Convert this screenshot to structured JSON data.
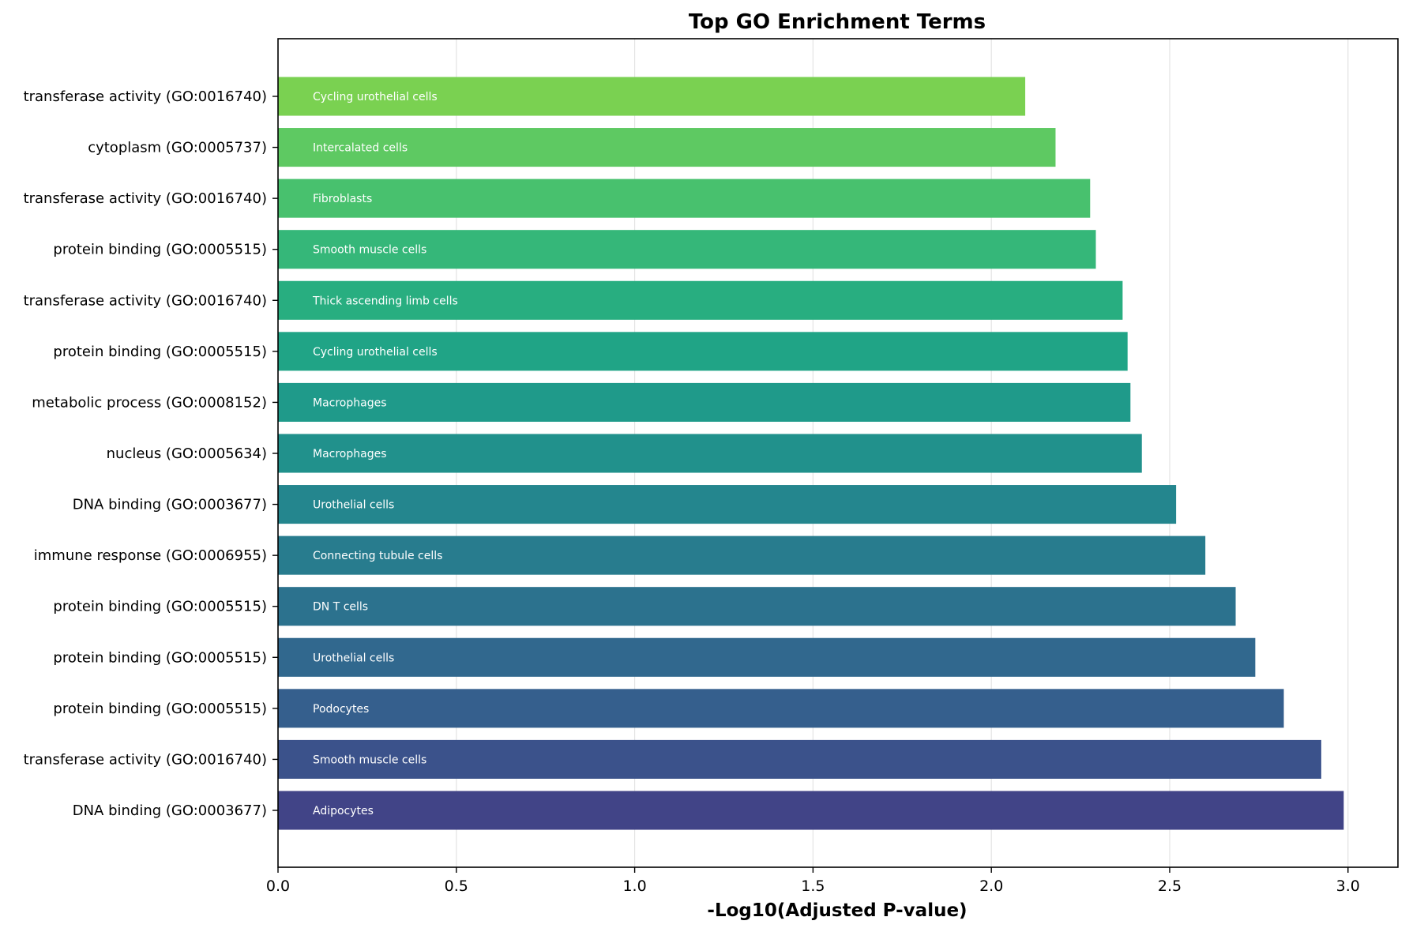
{
  "chart_data": {
    "type": "bar",
    "orientation": "horizontal",
    "title": "Top GO Enrichment Terms",
    "xlabel": "-Log10(Adjusted P-value)",
    "ylabel": "",
    "xlim": [
      0,
      3.14
    ],
    "xticks": [
      "0.0",
      "0.5",
      "1.0",
      "1.5",
      "2.0",
      "2.5",
      "3.0"
    ],
    "grid": "vertical",
    "colormap": "viridis",
    "bars": [
      {
        "term": "transferase activity (GO:0016740)",
        "cell_type": "Cycling urothelial cells",
        "value": 2.095,
        "color": "#7ad151"
      },
      {
        "term": "cytoplasm (GO:0005737)",
        "cell_type": "Intercalated cells",
        "value": 2.18,
        "color": "#5ec962"
      },
      {
        "term": "transferase activity (GO:0016740)",
        "cell_type": "Fibroblasts",
        "value": 2.277,
        "color": "#48c16e"
      },
      {
        "term": "protein binding (GO:0005515)",
        "cell_type": "Smooth muscle cells",
        "value": 2.293,
        "color": "#35b779"
      },
      {
        "term": "transferase activity (GO:0016740)",
        "cell_type": "Thick ascending limb cells",
        "value": 2.368,
        "color": "#28ae80"
      },
      {
        "term": "protein binding (GO:0005515)",
        "cell_type": "Cycling urothelial cells",
        "value": 2.382,
        "color": "#20a486"
      },
      {
        "term": "metabolic process (GO:0008152)",
        "cell_type": "Macrophages",
        "value": 2.39,
        "color": "#1f9a8a"
      },
      {
        "term": "nucleus (GO:0005634)",
        "cell_type": "Macrophages",
        "value": 2.422,
        "color": "#21918c"
      },
      {
        "term": "DNA binding (GO:0003677)",
        "cell_type": "Urothelial cells",
        "value": 2.518,
        "color": "#24868e"
      },
      {
        "term": "immune response (GO:0006955)",
        "cell_type": "Connecting tubule cells",
        "value": 2.6,
        "color": "#287c8e"
      },
      {
        "term": "protein binding (GO:0005515)",
        "cell_type": "DN T cells",
        "value": 2.685,
        "color": "#2c728e"
      },
      {
        "term": "protein binding (GO:0005515)",
        "cell_type": "Urothelial cells",
        "value": 2.74,
        "color": "#31688e"
      },
      {
        "term": "protein binding (GO:0005515)",
        "cell_type": "Podocytes",
        "value": 2.82,
        "color": "#355f8d"
      },
      {
        "term": "transferase activity (GO:0016740)",
        "cell_type": "Smooth muscle cells",
        "value": 2.925,
        "color": "#3b528b"
      },
      {
        "term": "DNA binding (GO:0003677)",
        "cell_type": "Adipocytes",
        "value": 2.988,
        "color": "#414487"
      }
    ]
  }
}
